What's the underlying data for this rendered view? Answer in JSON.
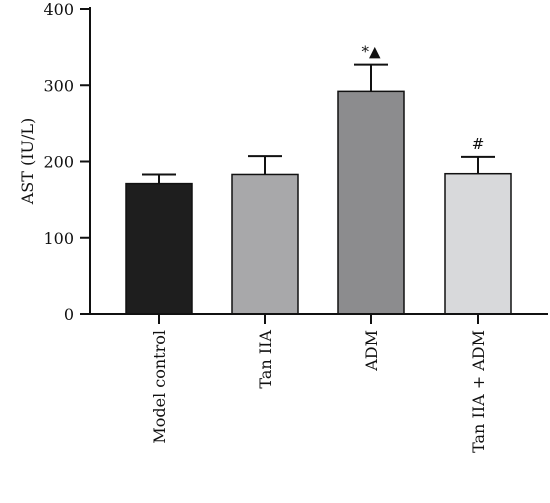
{
  "chart_data": {
    "type": "bar",
    "title": "",
    "xlabel": "",
    "ylabel": "AST (IU/L)",
    "ylim": [
      0,
      400
    ],
    "yticks": [
      0,
      100,
      200,
      300,
      400
    ],
    "categories": [
      "Model control",
      "Tan IIA",
      "ADM",
      "Tan IIA + ADM"
    ],
    "values": [
      171,
      183,
      292,
      184
    ],
    "errors": [
      12,
      24,
      35,
      22
    ],
    "colors": [
      "#1e1e1e",
      "#a8a8aa",
      "#8c8c8e",
      "#d8d9db"
    ],
    "annotations": [
      "",
      "",
      "*▲",
      "#"
    ],
    "grid": false,
    "legend": "none"
  }
}
